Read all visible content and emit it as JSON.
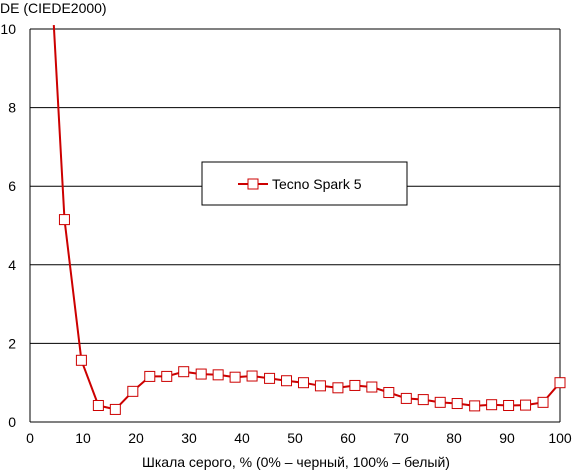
{
  "chart_data": {
    "type": "line",
    "ylabel": "DE (CIEDE2000)",
    "xlabel": "Шкала серого, % (0% – черный, 100% – белый)",
    "xlim": [
      0,
      100
    ],
    "ylim": [
      0,
      10
    ],
    "x_ticks": [
      "0",
      "10",
      "20",
      "30",
      "40",
      "50",
      "60",
      "70",
      "80",
      "90",
      "100"
    ],
    "y_ticks": [
      "0",
      "2",
      "4",
      "6",
      "8",
      "10"
    ],
    "grid": "horizontal",
    "legend_position": "center",
    "series": [
      {
        "name": "Tecno Spark 5",
        "color": "#cc0000",
        "marker": "square-open",
        "x": [
          4.5,
          6.5,
          9.7,
          12.9,
          16.1,
          19.4,
          22.6,
          25.8,
          29.0,
          32.3,
          35.5,
          38.7,
          41.9,
          45.2,
          48.4,
          51.6,
          54.8,
          58.1,
          61.3,
          64.5,
          67.7,
          71.0,
          74.2,
          77.4,
          80.6,
          83.9,
          87.1,
          90.3,
          93.5,
          96.8,
          100
        ],
        "values": [
          10.1,
          5.15,
          1.57,
          0.42,
          0.32,
          0.78,
          1.16,
          1.16,
          1.28,
          1.22,
          1.2,
          1.14,
          1.17,
          1.11,
          1.05,
          1.0,
          0.92,
          0.87,
          0.93,
          0.89,
          0.75,
          0.6,
          0.57,
          0.5,
          0.47,
          0.41,
          0.44,
          0.42,
          0.43,
          0.5,
          1.0
        ]
      }
    ]
  }
}
